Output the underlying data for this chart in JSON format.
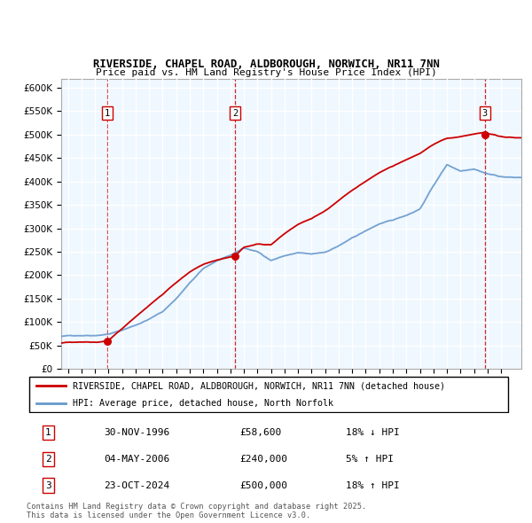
{
  "title1": "RIVERSIDE, CHAPEL ROAD, ALDBOROUGH, NORWICH, NR11 7NN",
  "title2": "Price paid vs. HM Land Registry's House Price Index (HPI)",
  "legend_line1": "RIVERSIDE, CHAPEL ROAD, ALDBOROUGH, NORWICH, NR11 7NN (detached house)",
  "legend_line2": "HPI: Average price, detached house, North Norfolk",
  "footnote1": "Contains HM Land Registry data © Crown copyright and database right 2025.",
  "footnote2": "This data is licensed under the Open Government Licence v3.0.",
  "sale1_label": "1",
  "sale1_date": "30-NOV-1996",
  "sale1_price": 58600,
  "sale1_price_str": "£58,600",
  "sale1_pct": "18% ↓ HPI",
  "sale2_label": "2",
  "sale2_date": "04-MAY-2006",
  "sale2_price": 240000,
  "sale2_price_str": "£240,000",
  "sale2_pct": "5% ↑ HPI",
  "sale3_label": "3",
  "sale3_date": "23-OCT-2024",
  "sale3_price": 500000,
  "sale3_price_str": "£500,000",
  "sale3_pct": "18% ↑ HPI",
  "sale1_x": 1996.92,
  "sale2_x": 2006.34,
  "sale3_x": 2024.81,
  "hpi_color": "#6699cc",
  "price_color": "#cc0000",
  "vline_color": "#cc0000",
  "ylim": [
    0,
    620000
  ],
  "xlim_left": 1993.5,
  "xlim_right": 2027.5
}
